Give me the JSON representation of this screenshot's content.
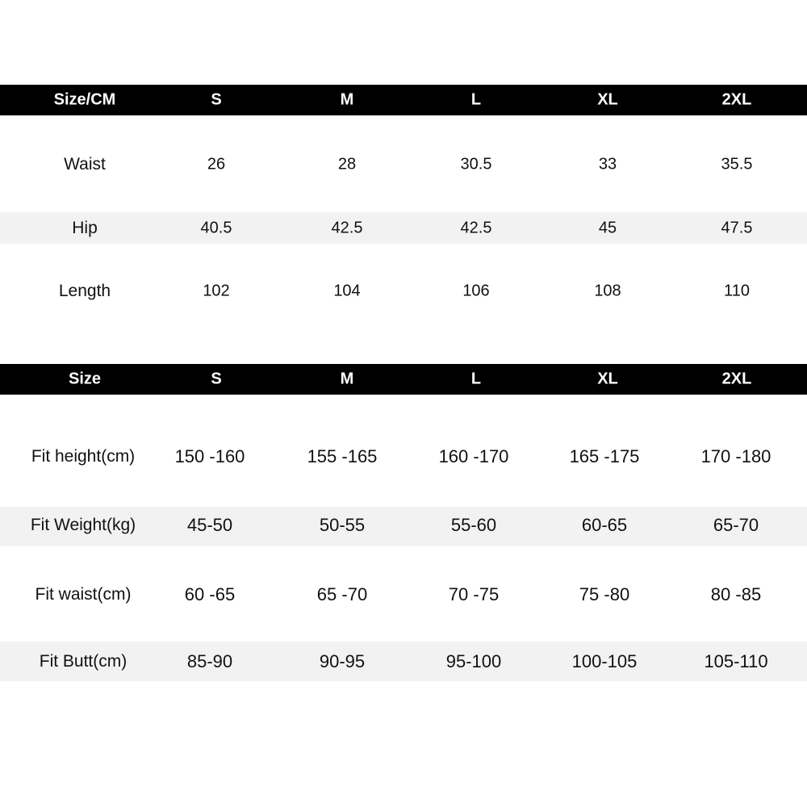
{
  "table1": {
    "header": [
      "Size/CM",
      "S",
      "M",
      "L",
      "XL",
      "2XL"
    ],
    "rows": [
      [
        "Waist",
        26,
        28,
        30.5,
        33,
        35.5
      ],
      [
        "Hip",
        40.5,
        42.5,
        42.5,
        45,
        47.5
      ],
      [
        "Length",
        102,
        104,
        106,
        108,
        110
      ]
    ]
  },
  "table2": {
    "header": [
      "Size",
      "S",
      "M",
      "L",
      "XL",
      "2XL"
    ],
    "rows": [
      [
        "Fit height(cm)",
        "150 -160",
        "155 -165",
        "160 -170",
        "165 -175",
        "170 -180"
      ],
      [
        "Fit Weight(kg)",
        "45-50",
        "50-55",
        "55-60",
        "60-65",
        "65-70"
      ],
      [
        "Fit waist(cm)",
        "60 -65",
        "65 -70",
        "70 -75",
        "75 -80",
        "80 -85"
      ],
      [
        "Fit Butt(cm)",
        "85-90",
        "90-95",
        "95-100",
        "100-105",
        "105-110"
      ]
    ]
  }
}
